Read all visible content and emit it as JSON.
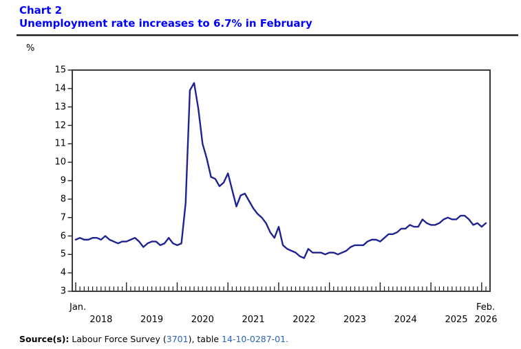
{
  "header": {
    "chart_label": "Chart 2",
    "headline": "Unemployment rate increases to 6.7% in February"
  },
  "y_axis": {
    "unit_label": "%",
    "min": 3,
    "max": 15,
    "tick_step": 1,
    "ticks": [
      15,
      14,
      13,
      12,
      11,
      10,
      9,
      8,
      7,
      6,
      5,
      4,
      3
    ]
  },
  "x_axis": {
    "start_month_label": "Jan.",
    "end_month_label": "Feb.",
    "year_labels": [
      "2018",
      "2019",
      "2020",
      "2021",
      "2022",
      "2023",
      "2024",
      "2025",
      "2026"
    ],
    "major_ticks": "January of each year",
    "minor_ticks": "monthly"
  },
  "source": {
    "prefix": "Source(s):",
    "text_before_link1": " Labour Force Survey (",
    "link1": "3701",
    "text_between_links": "), table ",
    "link2": "14-10-0287-01",
    "suffix": "."
  },
  "colors": {
    "title_blue": "#0000ff",
    "line_navy": "#1f2391",
    "link_blue": "#2b62ba",
    "axis_frame": "#3b3b3b"
  },
  "chart_data": {
    "type": "line",
    "title": "Unemployment rate increases to 6.7% in February",
    "xlabel": "",
    "ylabel": "%",
    "ylim": [
      3,
      15
    ],
    "x_start": "2018-01",
    "x_end": "2026-02",
    "frequency": "monthly",
    "grid": false,
    "legend": "none",
    "series": [
      {
        "name": "Unemployment rate (%)",
        "values": [
          5.8,
          5.9,
          5.8,
          5.8,
          5.9,
          5.9,
          5.8,
          6.0,
          5.8,
          5.7,
          5.6,
          5.7,
          5.7,
          5.8,
          5.9,
          5.7,
          5.4,
          5.6,
          5.7,
          5.7,
          5.5,
          5.6,
          5.9,
          5.6,
          5.5,
          5.6,
          7.8,
          13.9,
          14.3,
          12.9,
          11.0,
          10.2,
          9.2,
          9.1,
          8.7,
          8.9,
          9.4,
          8.5,
          7.6,
          8.2,
          8.3,
          7.9,
          7.5,
          7.2,
          7.0,
          6.7,
          6.2,
          5.9,
          6.5,
          5.5,
          5.3,
          5.2,
          5.1,
          4.9,
          4.8,
          5.3,
          5.1,
          5.1,
          5.1,
          5.0,
          5.1,
          5.1,
          5.0,
          5.1,
          5.2,
          5.4,
          5.5,
          5.5,
          5.5,
          5.7,
          5.8,
          5.8,
          5.7,
          5.9,
          6.1,
          6.1,
          6.2,
          6.4,
          6.4,
          6.6,
          6.5,
          6.5,
          6.9,
          6.7,
          6.6,
          6.6,
          6.7,
          6.9,
          7.0,
          6.9,
          6.9,
          7.1,
          7.1,
          6.9,
          6.6,
          6.7,
          6.5,
          6.7
        ]
      }
    ]
  }
}
